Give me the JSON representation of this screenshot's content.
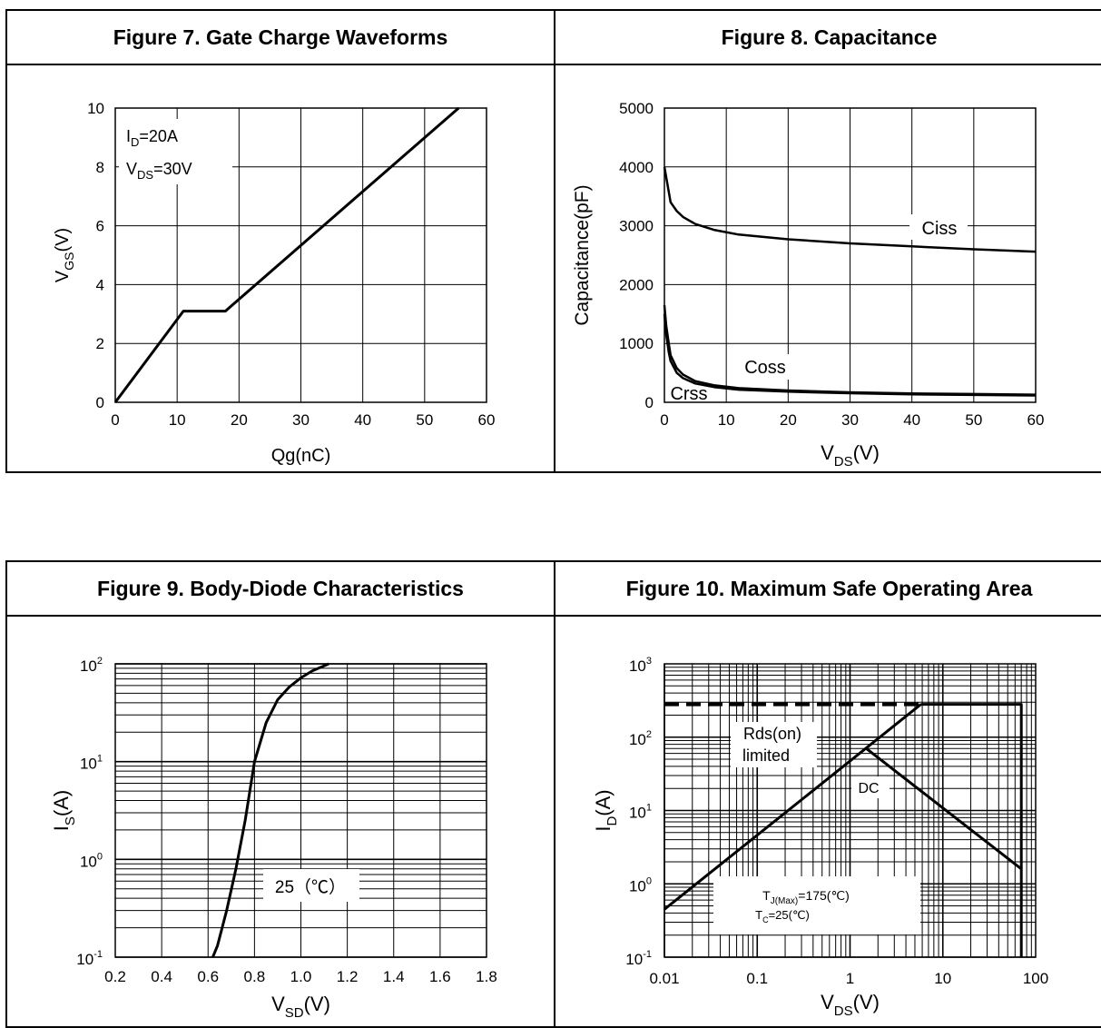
{
  "panels": [
    {
      "title": "Figure 7. Gate Charge Waveforms"
    },
    {
      "title": "Figure 8. Capacitance"
    },
    {
      "title": "Figure 9. Body-Diode Characteristics"
    },
    {
      "title": "Figure 10. Maximum Safe Operating Area"
    }
  ],
  "chart_data": [
    {
      "type": "line",
      "title": "Figure 7. Gate Charge Waveforms",
      "xlabel": "Qg(nC)",
      "ylabel": {
        "main": "V",
        "sub": "GS",
        "unit": "(V)"
      },
      "xlim": [
        0,
        60
      ],
      "ylim": [
        0,
        10
      ],
      "xticks": [
        0,
        10,
        20,
        30,
        40,
        50,
        60
      ],
      "yticks": [
        0,
        2,
        4,
        6,
        8,
        10
      ],
      "grid": true,
      "annotations": [
        {
          "main": "I",
          "sub": "D",
          "rest": "=20A"
        },
        {
          "main": "V",
          "sub": "DS",
          "rest": "=30V"
        }
      ],
      "series": [
        {
          "x": [
            0,
            11,
            17.8,
            55.5
          ],
          "y": [
            0,
            3.1,
            3.1,
            10
          ]
        }
      ]
    },
    {
      "type": "line",
      "title": "Figure 8. Capacitance",
      "xlabel": {
        "main": "V",
        "sub": "DS",
        "unit": "(V)"
      },
      "ylabel": "Capacitance(pF)",
      "xlim": [
        0,
        60
      ],
      "ylim": [
        0,
        5000
      ],
      "xticks": [
        0,
        10,
        20,
        30,
        40,
        50,
        60
      ],
      "yticks": [
        0,
        1000,
        2000,
        3000,
        4000,
        5000
      ],
      "grid": true,
      "series": [
        {
          "name": "Ciss",
          "x": [
            0,
            0.5,
            1,
            2,
            3,
            5,
            8,
            12,
            20,
            30,
            40,
            50,
            60
          ],
          "y": [
            4000,
            3700,
            3400,
            3250,
            3150,
            3030,
            2930,
            2850,
            2770,
            2700,
            2650,
            2600,
            2560
          ]
        },
        {
          "name": "Coss",
          "x": [
            0,
            0.3,
            0.7,
            1,
            2,
            3,
            5,
            8,
            12,
            20,
            30,
            40,
            50,
            60
          ],
          "y": [
            1650,
            1300,
            1000,
            800,
            580,
            470,
            360,
            290,
            240,
            200,
            170,
            150,
            140,
            130
          ]
        },
        {
          "name": "Crss",
          "x": [
            0,
            0.3,
            0.7,
            1,
            2,
            3,
            5,
            8,
            12,
            20,
            30,
            40,
            50,
            60
          ],
          "y": [
            1500,
            1150,
            850,
            700,
            500,
            410,
            320,
            260,
            215,
            180,
            155,
            135,
            125,
            115
          ]
        }
      ]
    },
    {
      "type": "line",
      "title": "Figure 9. Body-Diode Characteristics",
      "xlabel": {
        "main": "V",
        "sub": "SD",
        "unit": "(V)"
      },
      "ylabel": {
        "main": "I",
        "sub": "S",
        "unit": "(A)"
      },
      "xlim": [
        0.2,
        1.8
      ],
      "ylim": [
        0.1,
        100
      ],
      "yscale": "log",
      "xticks": [
        "0.2",
        "0.4",
        "0.6",
        "0.8",
        "1.0",
        "1.2",
        "1.4",
        "1.6",
        "1.8"
      ],
      "yticks": [
        {
          "base": "10",
          "exp": "-1"
        },
        {
          "base": "10",
          "exp": "0"
        },
        {
          "base": "10",
          "exp": "1"
        },
        {
          "base": "10",
          "exp": "2"
        }
      ],
      "grid": true,
      "series": [
        {
          "name": "25（℃）",
          "x": [
            0.62,
            0.64,
            0.68,
            0.72,
            0.76,
            0.8,
            0.85,
            0.9,
            0.95,
            1.0,
            1.05,
            1.12
          ],
          "y": [
            0.1,
            0.13,
            0.3,
            0.8,
            2.5,
            10,
            25,
            43,
            58,
            72,
            85,
            100
          ]
        }
      ]
    },
    {
      "type": "line",
      "title": "Figure 10. Maximum Safe Operating Area",
      "xlabel": {
        "main": "V",
        "sub": "DS",
        "unit": "(V)"
      },
      "ylabel": {
        "main": "I",
        "sub": "D",
        "unit": "(A)"
      },
      "xlim": [
        0.01,
        100
      ],
      "ylim": [
        0.1,
        1000
      ],
      "xscale": "log",
      "yscale": "log",
      "xticks": [
        "0.01",
        "0.1",
        "1",
        "10",
        "100"
      ],
      "yticks": [
        {
          "base": "10",
          "exp": "-1"
        },
        {
          "base": "10",
          "exp": "0"
        },
        {
          "base": "10",
          "exp": "1"
        },
        {
          "base": "10",
          "exp": "2"
        },
        {
          "base": "10",
          "exp": "3"
        }
      ],
      "grid": true,
      "labels": {
        "rds_line1": "Rds(on)",
        "rds_line2": "limited",
        "dc": "DC",
        "tj": {
          "main": "T",
          "sub": "J(Max)",
          "rest": "=175(℃)"
        },
        "tc": {
          "main": "T",
          "sub": "C",
          "rest": "=25(℃)"
        }
      },
      "series": [
        {
          "name": "current limit (dashed)",
          "x": [
            0.01,
            5.8
          ],
          "y": [
            280,
            280
          ]
        },
        {
          "name": "Rds(on) limited",
          "x": [
            0.01,
            5.8
          ],
          "y": [
            0.45,
            280
          ]
        },
        {
          "name": "package limit",
          "x": [
            5.8,
            70,
            70
          ],
          "y": [
            280,
            280,
            0.1
          ]
        },
        {
          "name": "DC",
          "x": [
            1.5,
            70
          ],
          "y": [
            70,
            1.6
          ]
        }
      ]
    }
  ]
}
